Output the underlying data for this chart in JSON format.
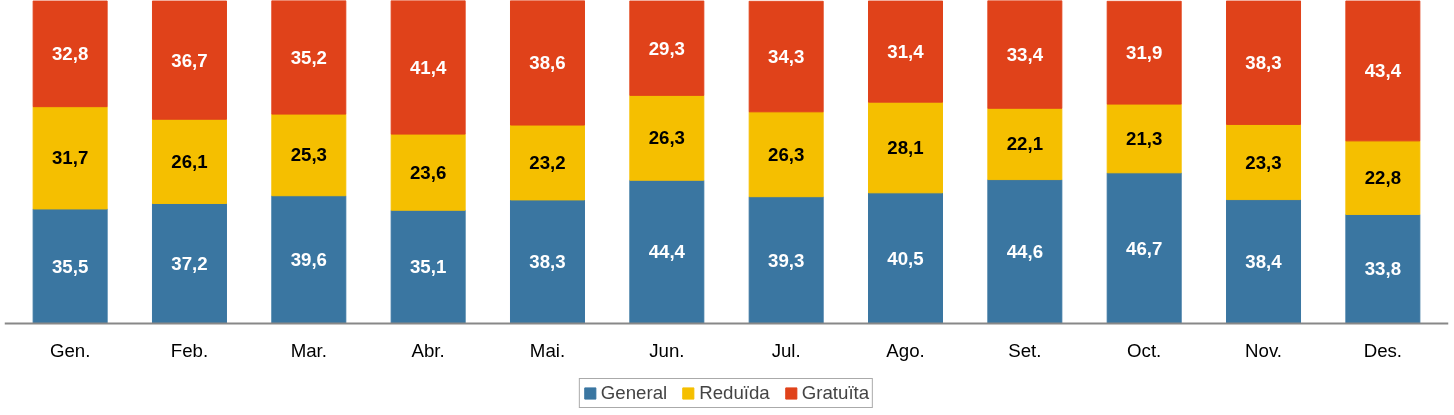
{
  "chart_data": {
    "type": "bar",
    "stacked": true,
    "categories": [
      "Gen.",
      "Feb.",
      "Mar.",
      "Abr.",
      "Mai.",
      "Jun.",
      "Jul.",
      "Ago.",
      "Set.",
      "Oct.",
      "Nov.",
      "Des."
    ],
    "series": [
      {
        "name": "General",
        "color": "#3a76a1",
        "values": [
          35.5,
          37.2,
          39.6,
          35.1,
          38.3,
          44.4,
          39.3,
          40.5,
          44.6,
          46.7,
          38.4,
          33.8
        ],
        "value_labels": [
          "35,5",
          "37,2",
          "39,6",
          "35,1",
          "38,3",
          "44,4",
          "39,3",
          "40,5",
          "44,6",
          "46,7",
          "38,4",
          "33,8"
        ]
      },
      {
        "name": "Reduïda",
        "color": "#f5bf00",
        "values": [
          31.7,
          26.1,
          25.3,
          23.6,
          23.2,
          26.3,
          26.3,
          28.1,
          22.1,
          21.3,
          23.3,
          22.8
        ],
        "value_labels": [
          "31,7",
          "26,1",
          "25,3",
          "23,6",
          "23,2",
          "26,3",
          "26,3",
          "28,1",
          "22,1",
          "21,3",
          "23,3",
          "22,8"
        ]
      },
      {
        "name": "Gratuïta",
        "color": "#e0421a",
        "values": [
          32.8,
          36.7,
          35.2,
          41.4,
          38.6,
          29.3,
          34.3,
          31.4,
          33.4,
          31.9,
          38.3,
          43.4
        ],
        "value_labels": [
          "32,8",
          "36,7",
          "35,2",
          "41,4",
          "38,6",
          "29,3",
          "34,3",
          "31,4",
          "33,4",
          "31,9",
          "38,3",
          "43,4"
        ]
      }
    ],
    "tick_labels": "x",
    "legend": "bottom"
  }
}
